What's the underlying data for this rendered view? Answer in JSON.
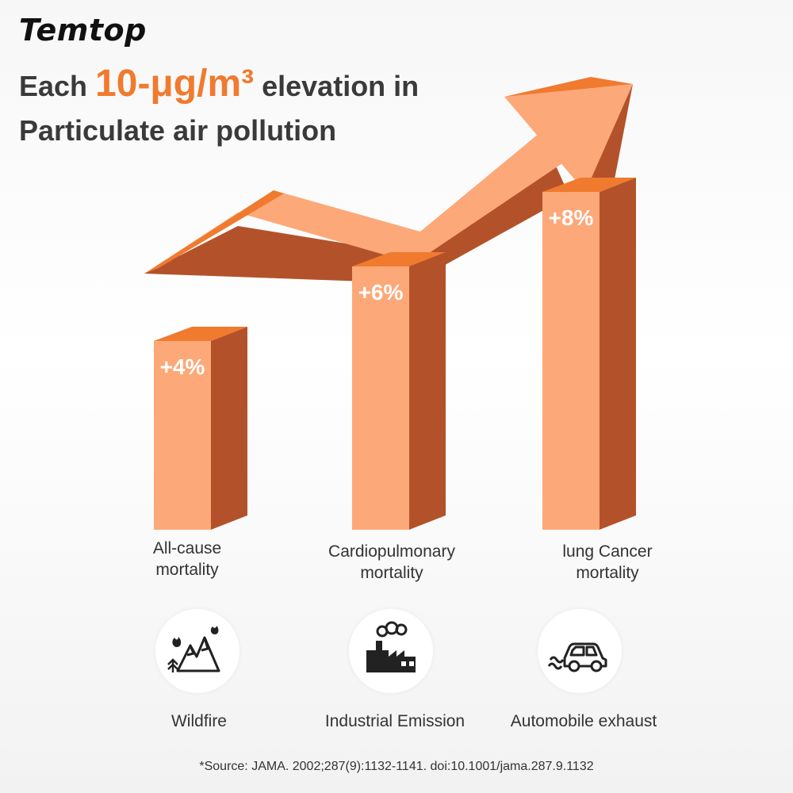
{
  "brand": "Temtop",
  "headline": {
    "prefix": "Each ",
    "highlight": "10-μg/m³",
    "suffix": " elevation in",
    "line2": "Particulate air pollution"
  },
  "chart_data": {
    "type": "bar",
    "categories": [
      "All-cause mortality",
      "Cardiopulmonary mortality",
      "lung Cancer mortality"
    ],
    "category_lines": [
      [
        "All-cause",
        "mortality"
      ],
      [
        "Cardiopulmonary",
        "mortality"
      ],
      [
        "lung Cancer",
        "mortality"
      ]
    ],
    "values": [
      4,
      6,
      8
    ],
    "value_labels": [
      "+4%",
      "+6%",
      "+8%"
    ],
    "unit": "%",
    "trend_arrow": "rising",
    "colors": {
      "front": "#fda878",
      "top": "#f07a2e",
      "side": "#b3522a"
    }
  },
  "sources": [
    {
      "label": "Wildfire",
      "icon": "wildfire-icon"
    },
    {
      "label": "Industrial Emission",
      "icon": "factory-icon"
    },
    {
      "label": "Automobile exhaust",
      "icon": "car-exhaust-icon"
    }
  ],
  "footnote": "*Source: JAMA. 2002;287(9):1132-1141. doi:10.1001/jama.287.9.1132"
}
